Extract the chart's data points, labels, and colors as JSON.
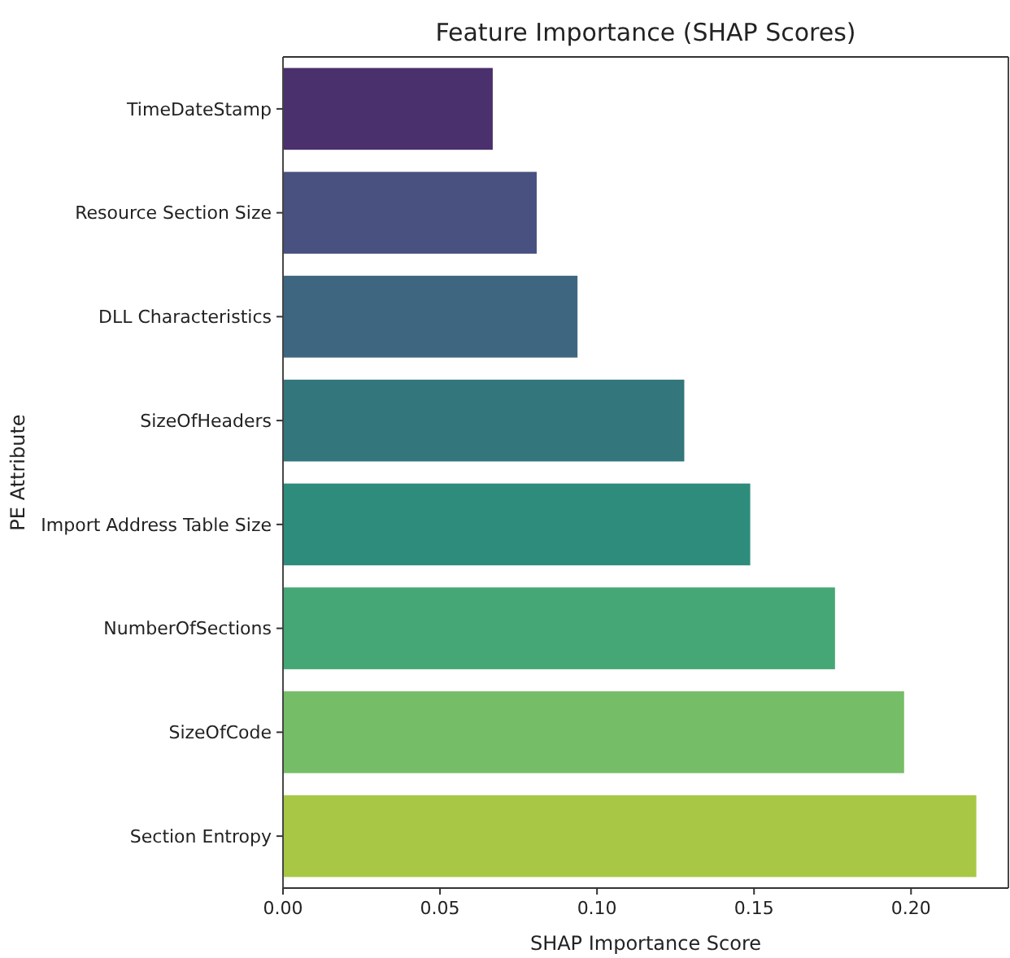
{
  "chart_data": {
    "type": "bar",
    "orientation": "horizontal",
    "title": "Feature Importance (SHAP Scores)",
    "xlabel": "SHAP Importance Score",
    "ylabel": "PE Attribute",
    "categories": [
      "TimeDateStamp",
      "Resource Section Size",
      "DLL Characteristics",
      "SizeOfHeaders",
      "Import Address Table Size",
      "NumberOfSections",
      "SizeOfCode",
      "Section Entropy"
    ],
    "values": [
      0.067,
      0.081,
      0.094,
      0.128,
      0.149,
      0.176,
      0.198,
      0.221
    ],
    "colors": [
      "#4a306c",
      "#48517f",
      "#3e6680",
      "#33777d",
      "#2d8c7b",
      "#45a775",
      "#76bd67",
      "#a8c744"
    ],
    "xlim": [
      0,
      0.231
    ],
    "xticks": [
      {
        "value": 0,
        "label": "0.00"
      },
      {
        "value": 0.05,
        "label": "0.05"
      },
      {
        "value": 0.1,
        "label": "0.10"
      },
      {
        "value": 0.15,
        "label": "0.15"
      },
      {
        "value": 0.2,
        "label": "0.20"
      }
    ]
  }
}
